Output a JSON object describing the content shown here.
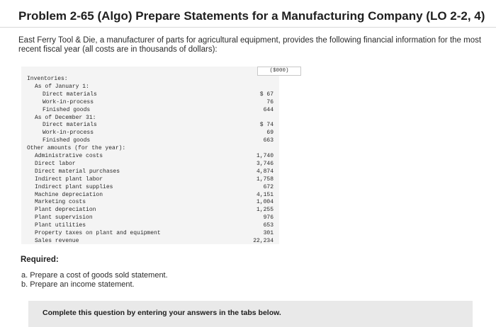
{
  "title": "Problem 2-65 (Algo) Prepare Statements for a Manufacturing Company (LO 2-2, 4)",
  "intro": "East Ferry Tool & Die, a manufacturer of parts for agricultural equipment, provides the following financial information for the most recent fiscal year (all costs are in thousands of dollars):",
  "table": {
    "column_header": "($000)",
    "rows": [
      {
        "label": "Inventories:",
        "value": ""
      },
      {
        "label": "As of January 1:",
        "value": ""
      },
      {
        "label": "Direct materials",
        "value": "$ 67"
      },
      {
        "label": "Work-in-process",
        "value": "76"
      },
      {
        "label": "Finished goods",
        "value": "644"
      },
      {
        "label": "As of December 31:",
        "value": ""
      },
      {
        "label": "Direct materials",
        "value": "$ 74"
      },
      {
        "label": "Work-in-process",
        "value": "69"
      },
      {
        "label": "Finished goods",
        "value": "663"
      },
      {
        "label": "Other amounts (for the year):",
        "value": ""
      },
      {
        "label": "Administrative costs",
        "value": "1,740"
      },
      {
        "label": "Direct labor",
        "value": "3,746"
      },
      {
        "label": "Direct material purchases",
        "value": "4,874"
      },
      {
        "label": "Indirect plant labor",
        "value": "1,758"
      },
      {
        "label": "Indirect plant supplies",
        "value": "672"
      },
      {
        "label": "Machine depreciation",
        "value": "4,151"
      },
      {
        "label": "Marketing costs",
        "value": "1,004"
      },
      {
        "label": "Plant depreciation",
        "value": "1,255"
      },
      {
        "label": "Plant supervision",
        "value": "976"
      },
      {
        "label": "Plant utilities",
        "value": "653"
      },
      {
        "label": "Property taxes on plant and equipment",
        "value": "301"
      },
      {
        "label": "Sales revenue",
        "value": "22,234"
      }
    ]
  },
  "required_heading": "Required:",
  "requirements": [
    "a. Prepare a cost of goods sold statement.",
    "b. Prepare an income statement."
  ],
  "instruction": "Complete this question by entering your answers in the tabs below."
}
